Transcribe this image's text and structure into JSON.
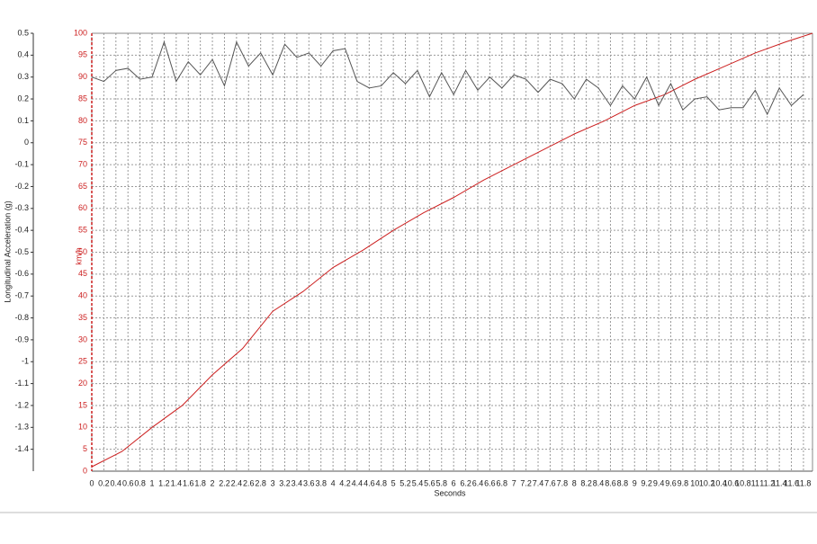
{
  "chart_data": {
    "type": "line",
    "xlabel": "Seconds",
    "ylabel": "km/h",
    "y2label": "Longitudinal Acceleration (g)",
    "xlim": [
      0,
      11.95
    ],
    "xticks": [
      0,
      0.2,
      0.4,
      0.6,
      0.8,
      1,
      1.2,
      1.4,
      1.6,
      1.8,
      2,
      2.2,
      2.4,
      2.6,
      2.8,
      3,
      3.2,
      3.4,
      3.6,
      3.8,
      4,
      4.2,
      4.4,
      4.6,
      4.8,
      5,
      5.2,
      5.4,
      5.6,
      5.8,
      6,
      6.2,
      6.4,
      6.6,
      6.8,
      7,
      7.2,
      7.4,
      7.6,
      7.8,
      8,
      8.2,
      8.4,
      8.6,
      8.8,
      9,
      9.2,
      9.4,
      9.6,
      9.8,
      10,
      10.2,
      10.4,
      10.6,
      10.8,
      11,
      11.2,
      11.4,
      11.6,
      11.8
    ],
    "ylim": [
      0,
      100
    ],
    "yticks": [
      0,
      5,
      10,
      15,
      20,
      25,
      30,
      35,
      40,
      45,
      50,
      55,
      60,
      65,
      70,
      75,
      80,
      85,
      90,
      95,
      100
    ],
    "y2lim": [
      -1.5,
      0.5
    ],
    "y2ticks": [
      0.5,
      0.4,
      0.3,
      0.2,
      0.1,
      0,
      -0.1,
      -0.2,
      -0.3,
      -0.4,
      -0.5,
      -0.6,
      -0.7,
      -0.8,
      -0.9,
      -1,
      -1.1,
      -1.2,
      -1.3,
      -1.4
    ],
    "grid": true,
    "series": [
      {
        "color": "#cc1f1f",
        "x": [
          0,
          0.5,
          1,
          1.5,
          2,
          2.5,
          3,
          3.5,
          4,
          4.5,
          5,
          5.5,
          6,
          6.5,
          7,
          7.5,
          8,
          8.5,
          9,
          9.5,
          10,
          10.5,
          11,
          11.5,
          11.95
        ],
        "values": [
          1,
          4.5,
          10,
          15,
          22,
          28,
          36.5,
          41,
          46.5,
          50.5,
          55,
          59,
          62.5,
          66.5,
          70,
          73.5,
          77,
          80,
          83.5,
          86,
          89.5,
          92.5,
          95.5,
          98,
          100
        ]
      },
      {
        "color": "#555555",
        "axis": "y2",
        "x": [
          0,
          0.2,
          0.4,
          0.6,
          0.8,
          1,
          1.2,
          1.4,
          1.6,
          1.8,
          2,
          2.2,
          2.4,
          2.6,
          2.8,
          3,
          3.2,
          3.4,
          3.6,
          3.8,
          4,
          4.2,
          4.4,
          4.6,
          4.8,
          5,
          5.2,
          5.4,
          5.6,
          5.8,
          6,
          6.2,
          6.4,
          6.6,
          6.8,
          7,
          7.2,
          7.4,
          7.6,
          7.8,
          8,
          8.2,
          8.4,
          8.6,
          8.8,
          9,
          9.2,
          9.4,
          9.6,
          9.8,
          10,
          10.2,
          10.4,
          10.6,
          10.8,
          11,
          11.2,
          11.4,
          11.6,
          11.8
        ],
        "values": [
          0.3,
          0.28,
          0.33,
          0.34,
          0.29,
          0.3,
          0.46,
          0.28,
          0.37,
          0.31,
          0.38,
          0.26,
          0.46,
          0.35,
          0.41,
          0.31,
          0.45,
          0.39,
          0.41,
          0.35,
          0.42,
          0.43,
          0.28,
          0.25,
          0.26,
          0.32,
          0.27,
          0.33,
          0.21,
          0.32,
          0.22,
          0.33,
          0.24,
          0.3,
          0.25,
          0.31,
          0.29,
          0.23,
          0.29,
          0.27,
          0.2,
          0.29,
          0.25,
          0.17,
          0.26,
          0.2,
          0.3,
          0.17,
          0.27,
          0.15,
          0.2,
          0.21,
          0.15,
          0.16,
          0.16,
          0.24,
          0.13,
          0.25,
          0.17,
          0.22
        ]
      }
    ]
  }
}
